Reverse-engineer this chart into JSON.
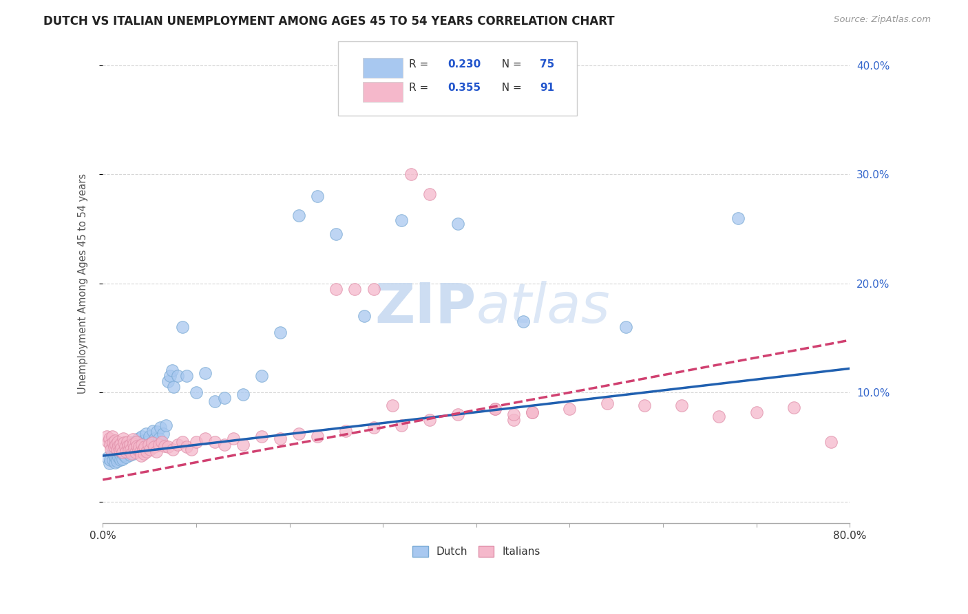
{
  "title": "DUTCH VS ITALIAN UNEMPLOYMENT AMONG AGES 45 TO 54 YEARS CORRELATION CHART",
  "source": "Source: ZipAtlas.com",
  "ylabel": "Unemployment Among Ages 45 to 54 years",
  "xlim": [
    0.0,
    0.8
  ],
  "ylim": [
    -0.02,
    0.42
  ],
  "dutch_color": "#a8c8f0",
  "dutch_edge_color": "#7aaad4",
  "italian_color": "#f5b8cb",
  "italian_edge_color": "#e090aa",
  "dutch_line_color": "#2060b0",
  "italian_line_color": "#d04070",
  "watermark_color": "#c5d8f0",
  "grid_color": "#cccccc",
  "background_color": "#ffffff",
  "dutch_scatter_x": [
    0.005,
    0.007,
    0.008,
    0.01,
    0.01,
    0.011,
    0.012,
    0.013,
    0.014,
    0.015,
    0.015,
    0.016,
    0.017,
    0.018,
    0.019,
    0.02,
    0.021,
    0.022,
    0.023,
    0.024,
    0.025,
    0.026,
    0.027,
    0.028,
    0.029,
    0.03,
    0.031,
    0.032,
    0.033,
    0.034,
    0.035,
    0.036,
    0.037,
    0.038,
    0.039,
    0.04,
    0.041,
    0.042,
    0.043,
    0.044,
    0.045,
    0.046,
    0.048,
    0.05,
    0.052,
    0.054,
    0.056,
    0.058,
    0.06,
    0.062,
    0.065,
    0.068,
    0.07,
    0.072,
    0.074,
    0.076,
    0.08,
    0.085,
    0.09,
    0.1,
    0.11,
    0.12,
    0.13,
    0.15,
    0.17,
    0.19,
    0.21,
    0.23,
    0.25,
    0.28,
    0.32,
    0.38,
    0.45,
    0.56,
    0.68
  ],
  "dutch_scatter_y": [
    0.04,
    0.035,
    0.038,
    0.045,
    0.05,
    0.038,
    0.042,
    0.036,
    0.04,
    0.043,
    0.037,
    0.048,
    0.041,
    0.044,
    0.038,
    0.046,
    0.039,
    0.05,
    0.043,
    0.047,
    0.041,
    0.053,
    0.046,
    0.049,
    0.043,
    0.054,
    0.047,
    0.05,
    0.044,
    0.055,
    0.048,
    0.052,
    0.046,
    0.058,
    0.05,
    0.055,
    0.048,
    0.06,
    0.052,
    0.056,
    0.05,
    0.062,
    0.055,
    0.06,
    0.054,
    0.065,
    0.058,
    0.064,
    0.058,
    0.068,
    0.062,
    0.07,
    0.11,
    0.115,
    0.12,
    0.105,
    0.115,
    0.16,
    0.115,
    0.1,
    0.118,
    0.092,
    0.095,
    0.098,
    0.115,
    0.155,
    0.262,
    0.28,
    0.245,
    0.17,
    0.258,
    0.255,
    0.165,
    0.16,
    0.26
  ],
  "italian_scatter_x": [
    0.004,
    0.006,
    0.007,
    0.008,
    0.009,
    0.01,
    0.011,
    0.012,
    0.013,
    0.014,
    0.015,
    0.016,
    0.017,
    0.018,
    0.019,
    0.02,
    0.021,
    0.022,
    0.023,
    0.024,
    0.025,
    0.026,
    0.027,
    0.028,
    0.029,
    0.03,
    0.031,
    0.032,
    0.033,
    0.034,
    0.035,
    0.036,
    0.037,
    0.038,
    0.039,
    0.04,
    0.041,
    0.042,
    0.043,
    0.044,
    0.045,
    0.047,
    0.049,
    0.051,
    0.053,
    0.055,
    0.057,
    0.06,
    0.063,
    0.066,
    0.07,
    0.075,
    0.08,
    0.085,
    0.09,
    0.095,
    0.1,
    0.11,
    0.12,
    0.13,
    0.14,
    0.15,
    0.17,
    0.19,
    0.21,
    0.23,
    0.26,
    0.29,
    0.32,
    0.35,
    0.38,
    0.42,
    0.46,
    0.5,
    0.54,
    0.58,
    0.62,
    0.66,
    0.7,
    0.74,
    0.78,
    0.33,
    0.35,
    0.25,
    0.42,
    0.44,
    0.29,
    0.31,
    0.27,
    0.44,
    0.46
  ],
  "italian_scatter_y": [
    0.06,
    0.055,
    0.058,
    0.052,
    0.048,
    0.06,
    0.054,
    0.05,
    0.056,
    0.052,
    0.048,
    0.055,
    0.051,
    0.047,
    0.053,
    0.049,
    0.045,
    0.058,
    0.054,
    0.05,
    0.046,
    0.055,
    0.051,
    0.047,
    0.052,
    0.048,
    0.044,
    0.057,
    0.053,
    0.049,
    0.045,
    0.055,
    0.051,
    0.047,
    0.05,
    0.046,
    0.042,
    0.052,
    0.048,
    0.044,
    0.05,
    0.046,
    0.052,
    0.048,
    0.054,
    0.05,
    0.046,
    0.052,
    0.055,
    0.051,
    0.05,
    0.048,
    0.052,
    0.055,
    0.05,
    0.048,
    0.055,
    0.058,
    0.055,
    0.052,
    0.058,
    0.052,
    0.06,
    0.058,
    0.062,
    0.06,
    0.065,
    0.068,
    0.07,
    0.075,
    0.08,
    0.085,
    0.082,
    0.085,
    0.09,
    0.088,
    0.088,
    0.078,
    0.082,
    0.086,
    0.055,
    0.3,
    0.282,
    0.195,
    0.085,
    0.075,
    0.195,
    0.088,
    0.195,
    0.08,
    0.082
  ],
  "dutch_trend_x0": 0.0,
  "dutch_trend_y0": 0.042,
  "dutch_trend_x1": 0.8,
  "dutch_trend_y1": 0.122,
  "italian_trend_x0": 0.0,
  "italian_trend_y0": 0.02,
  "italian_trend_x1": 0.8,
  "italian_trend_y1": 0.148
}
